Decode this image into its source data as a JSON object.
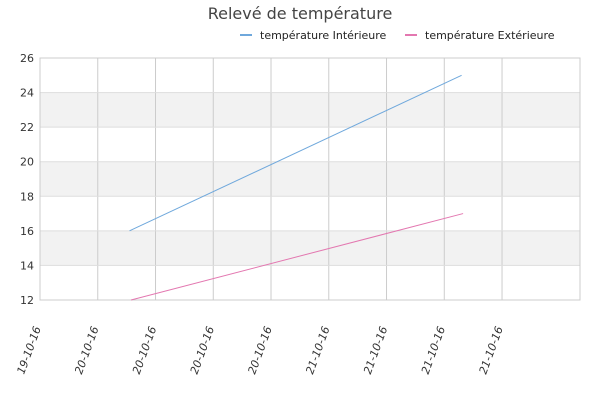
{
  "chart_data": {
    "type": "line",
    "title": "Relevé de température",
    "legend_position": "top-right",
    "grid": true,
    "x_tick_labels": [
      "19-10-16",
      "20-10-16",
      "20-10-16",
      "20-10-16",
      "20-10-16",
      "21-10-16",
      "21-10-16",
      "21-10-16",
      "21-10-16"
    ],
    "ylim": [
      12,
      26
    ],
    "y_ticks": [
      12,
      14,
      16,
      18,
      20,
      22,
      24,
      26
    ],
    "series": [
      {
        "name": "température Intérieure",
        "color": "#6fa8dc",
        "x": [
          "20-10-16",
          "21-10-16"
        ],
        "values": [
          16,
          25
        ]
      },
      {
        "name": "température Extérieure",
        "color": "#e377b0",
        "x": [
          "20-10-16",
          "21-10-16"
        ],
        "values": [
          12,
          17
        ]
      }
    ]
  }
}
